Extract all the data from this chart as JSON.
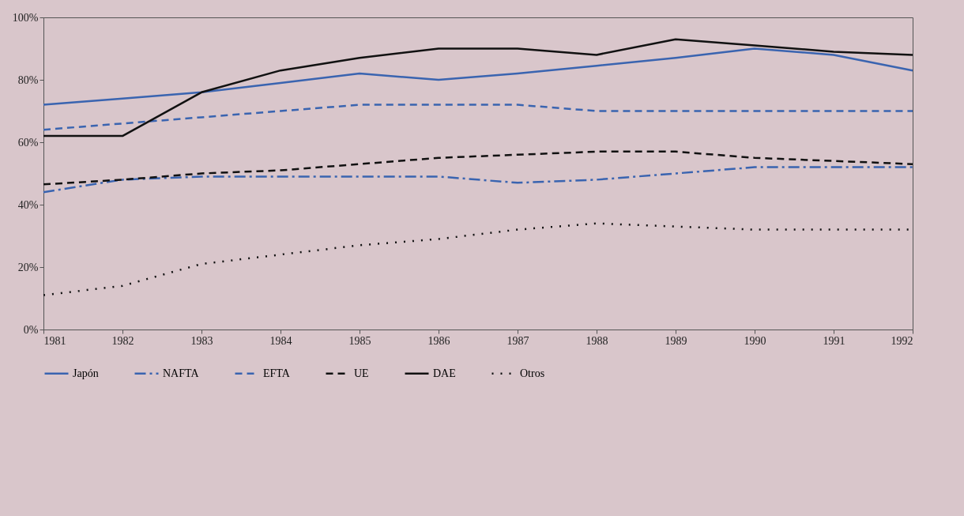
{
  "chart_data": {
    "type": "line",
    "x": [
      1981,
      1982,
      1983,
      1984,
      1985,
      1986,
      1987,
      1988,
      1989,
      1990,
      1991,
      1992
    ],
    "series": [
      {
        "name": "Japón",
        "color": "#3a64b0",
        "line_style": "solid",
        "values": [
          72,
          74,
          76,
          79,
          82,
          80,
          82,
          84.5,
          87,
          90,
          88,
          83
        ]
      },
      {
        "name": "NAFTA",
        "color": "#3a64b0",
        "line_style": "dashdot",
        "values": [
          44,
          48,
          49,
          49,
          49,
          49,
          47,
          48,
          50,
          52,
          52,
          52
        ]
      },
      {
        "name": "EFTA",
        "color": "#3a64b0",
        "line_style": "dashed",
        "values": [
          64,
          66,
          68,
          70,
          72,
          72,
          72,
          70,
          70,
          70,
          70,
          70
        ]
      },
      {
        "name": "UE",
        "color": "#111111",
        "line_style": "dashed",
        "values": [
          46.5,
          48,
          50,
          51,
          53,
          55,
          56,
          57,
          57,
          55,
          54,
          53
        ]
      },
      {
        "name": "DAE",
        "color": "#111111",
        "line_style": "solid",
        "values": [
          62,
          62,
          76,
          83,
          87,
          90,
          90,
          88,
          93,
          91,
          89,
          88
        ]
      },
      {
        "name": "Otros",
        "color": "#111111",
        "line_style": "dotted",
        "values": [
          11,
          14,
          21,
          24,
          27,
          29,
          32,
          34,
          33,
          32,
          32,
          32
        ]
      }
    ],
    "xlim": [
      1981,
      1992
    ],
    "xticks": [
      1981,
      1982,
      1983,
      1984,
      1985,
      1986,
      1987,
      1988,
      1989,
      1990,
      1991,
      1992
    ],
    "ylim": [
      0,
      100
    ],
    "yticks": [
      {
        "value": 0,
        "label": "0%"
      },
      {
        "value": 20,
        "label": "20%"
      },
      {
        "value": 40,
        "label": "40%"
      },
      {
        "value": 60,
        "label": "60%"
      },
      {
        "value": 80,
        "label": "80%"
      },
      {
        "value": 100,
        "label": "100%"
      }
    ],
    "grid": false,
    "legend": "bottom",
    "marker": "none"
  }
}
